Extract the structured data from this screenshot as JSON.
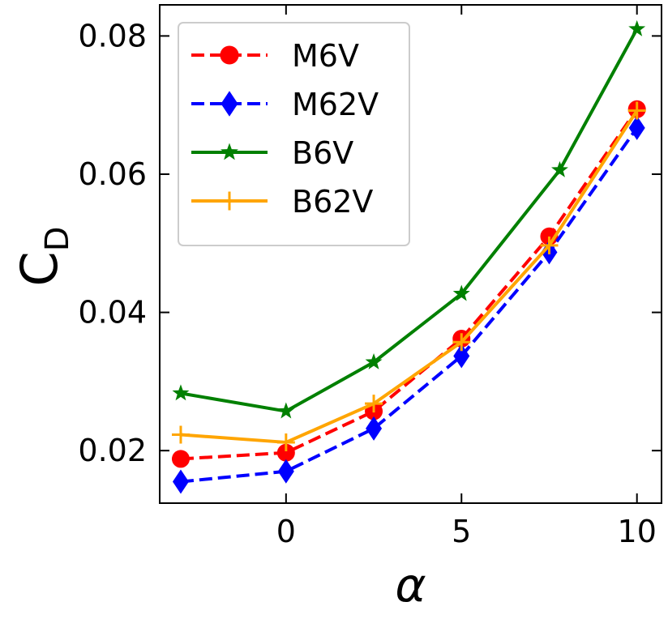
{
  "chart_data": {
    "type": "line",
    "xlabel": "α",
    "ylabel_main": "C",
    "ylabel_sub": "D",
    "xlim": [
      -3.6,
      10.7
    ],
    "ylim": [
      0.0124,
      0.0845
    ],
    "xticks": [
      0,
      5,
      10
    ],
    "yticks": [
      0.02,
      0.04,
      0.06,
      0.08
    ],
    "xtick_labels": [
      "0",
      "5",
      "10"
    ],
    "ytick_labels": [
      "0.02",
      "0.04",
      "0.06",
      "0.08"
    ],
    "grid": false,
    "legend_position": "top-left",
    "series": [
      {
        "name": "M6V",
        "color": "#ff0000",
        "linestyle": "dashed",
        "marker": "circle",
        "x": [
          -3,
          0,
          2.5,
          5,
          7.5,
          10
        ],
        "y": [
          0.0188,
          0.0197,
          0.0257,
          0.0362,
          0.051,
          0.0694
        ]
      },
      {
        "name": "M62V",
        "color": "#0000ff",
        "linestyle": "dashed",
        "marker": "diamond",
        "x": [
          -3,
          0,
          2.5,
          5,
          7.5,
          10
        ],
        "y": [
          0.0155,
          0.017,
          0.0232,
          0.0337,
          0.0487,
          0.0667
        ]
      },
      {
        "name": "B6V",
        "color": "#008000",
        "linestyle": "solid",
        "marker": "star",
        "x": [
          -3,
          0,
          2.5,
          5,
          7.8,
          10
        ],
        "y": [
          0.0283,
          0.0257,
          0.0328,
          0.0427,
          0.0606,
          0.081
        ]
      },
      {
        "name": "B62V",
        "color": "#ffa500",
        "linestyle": "solid",
        "marker": "plus",
        "x": [
          -3,
          0,
          2.5,
          5,
          7.5,
          10
        ],
        "y": [
          0.0223,
          0.0212,
          0.0268,
          0.0357,
          0.0497,
          0.0692
        ]
      }
    ]
  }
}
